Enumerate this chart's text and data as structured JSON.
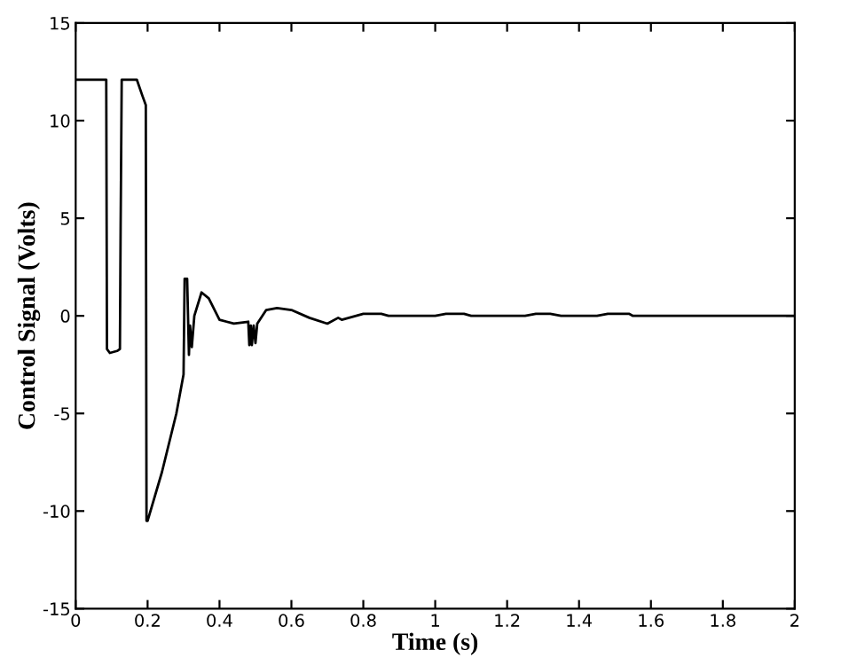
{
  "chart_data": {
    "type": "line",
    "xlabel": "Time (s)",
    "ylabel": "Control Signal (Volts)",
    "xlim": [
      0,
      2
    ],
    "ylim": [
      -15,
      15
    ],
    "xticks": [
      0,
      0.2,
      0.4,
      0.6,
      0.8,
      1,
      1.2,
      1.4,
      1.6,
      1.8,
      2
    ],
    "yticks": [
      -15,
      -10,
      -5,
      0,
      5,
      10,
      15
    ],
    "grid": false,
    "legend": false,
    "series": [
      {
        "color": "#000000",
        "x": [
          0,
          0.085,
          0.087,
          0.095,
          0.115,
          0.123,
          0.125,
          0.128,
          0.17,
          0.185,
          0.195,
          0.197,
          0.2,
          0.24,
          0.28,
          0.3,
          0.303,
          0.31,
          0.315,
          0.318,
          0.323,
          0.33,
          0.35,
          0.37,
          0.4,
          0.44,
          0.48,
          0.483,
          0.487,
          0.49,
          0.495,
          0.5,
          0.505,
          0.53,
          0.56,
          0.6,
          0.65,
          0.7,
          0.73,
          0.74,
          0.8,
          0.85,
          0.87,
          1.0,
          1.03,
          1.08,
          1.1,
          1.25,
          1.28,
          1.32,
          1.35,
          1.45,
          1.48,
          1.54,
          1.55,
          2.0
        ],
        "values": [
          12.1,
          12.1,
          -1.7,
          -1.9,
          -1.8,
          -1.7,
          4.6,
          12.1,
          12.1,
          11.3,
          10.8,
          -10.5,
          -10.5,
          -8,
          -5,
          -3,
          1.9,
          1.9,
          -2,
          -0.5,
          -1.6,
          0,
          1.2,
          0.9,
          -0.2,
          -0.4,
          -0.3,
          -1.5,
          -0.5,
          -1.5,
          -0.5,
          -1.4,
          -0.4,
          0.3,
          0.4,
          0.3,
          -0.1,
          -0.4,
          -0.1,
          -0.2,
          0.1,
          0.1,
          0,
          0,
          0.1,
          0.1,
          0,
          0,
          0.1,
          0.1,
          0,
          0,
          0.1,
          0.1,
          0,
          0
        ]
      }
    ]
  }
}
